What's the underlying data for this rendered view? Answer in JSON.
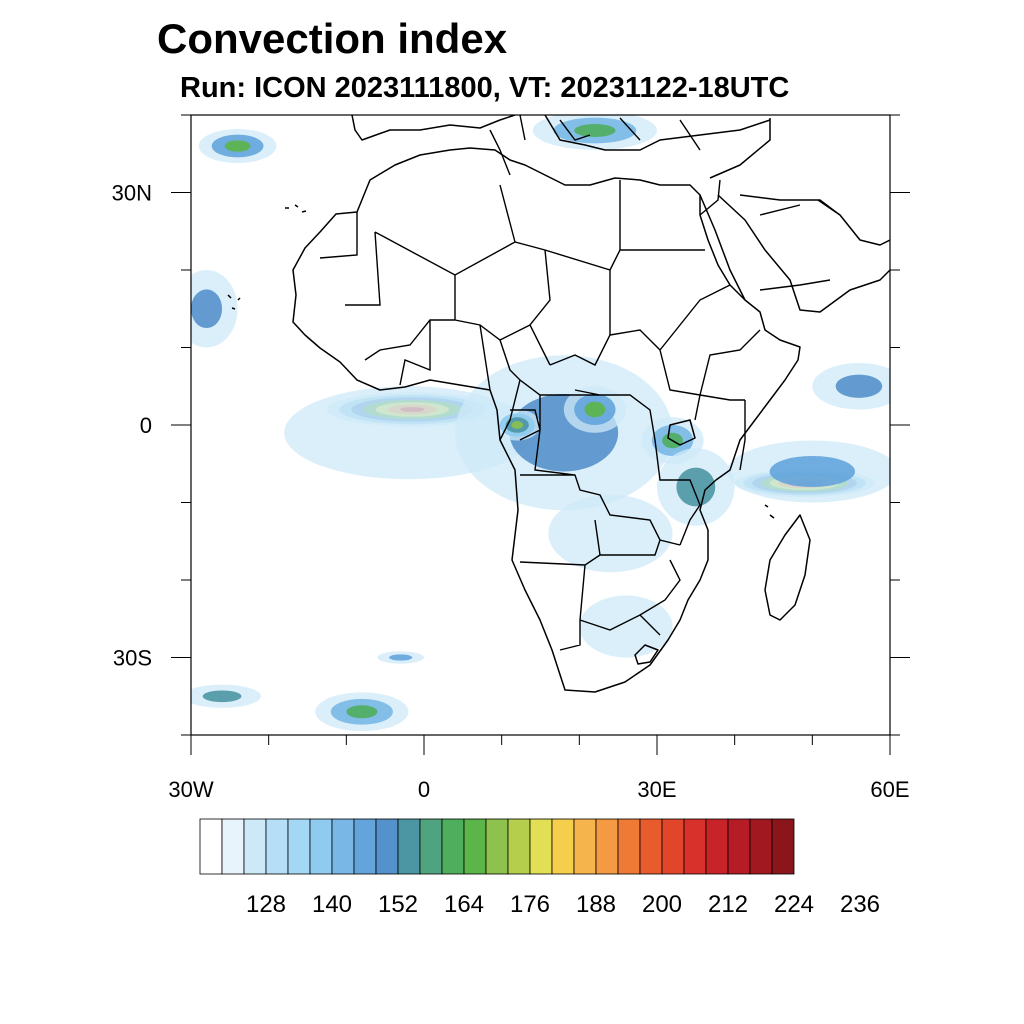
{
  "title": "Convection index",
  "subtitle": "Run: ICON 2023111800,  VT: 20231122-18UTC",
  "map": {
    "extent": {
      "lon_min": -30,
      "lon_max": 60,
      "lat_min": -40,
      "lat_max": 40
    },
    "x_ticks": [
      {
        "lon": -30,
        "label": "30W"
      },
      {
        "lon": 0,
        "label": "0"
      },
      {
        "lon": 30,
        "label": "30E"
      },
      {
        "lon": 60,
        "label": "60E"
      }
    ],
    "y_ticks": [
      {
        "lat": 30,
        "label": "30N"
      },
      {
        "lat": 0,
        "label": "0"
      },
      {
        "lat": -30,
        "label": "30S"
      }
    ],
    "minor_step_deg": 10,
    "convection_areas": [
      {
        "name": "gulf-of-guinea-band",
        "lon": -1.5,
        "lat": 2,
        "rlon": 11,
        "rlat": 2.2,
        "peak": 205
      },
      {
        "name": "gulf-of-guinea-halo",
        "lon": -2,
        "lat": -1,
        "rlon": 16,
        "rlat": 6,
        "peak": 140
      },
      {
        "name": "congo-basin",
        "lon": 18,
        "lat": -1,
        "rlon": 14,
        "rlat": 10,
        "peak": 150
      },
      {
        "name": "gabon-cluster",
        "lon": 12,
        "lat": 0,
        "rlon": 3,
        "rlat": 2,
        "peak": 168
      },
      {
        "name": "east-congo-cluster",
        "lon": 22,
        "lat": 2,
        "rlon": 4,
        "rlat": 3,
        "peak": 165
      },
      {
        "name": "lake-victoria",
        "lon": 32,
        "lat": -2,
        "rlon": 4,
        "rlat": 3,
        "peak": 160
      },
      {
        "name": "tanzania",
        "lon": 35,
        "lat": -8,
        "rlon": 5,
        "rlat": 5,
        "peak": 152
      },
      {
        "name": "indian-ocean-band",
        "lon": 49,
        "lat": -7.5,
        "rlon": 9,
        "rlat": 1.8,
        "peak": 218
      },
      {
        "name": "indian-ocean-halo",
        "lon": 50,
        "lat": -6,
        "rlon": 11,
        "rlat": 4,
        "peak": 145
      },
      {
        "name": "arabian-sea",
        "lon": 56,
        "lat": 5,
        "rlon": 6,
        "rlat": 3,
        "peak": 150
      },
      {
        "name": "angola-zambia",
        "lon": 24,
        "lat": -14,
        "rlon": 8,
        "rlat": 5,
        "peak": 135
      },
      {
        "name": "south-africa",
        "lon": 26,
        "lat": -26,
        "rlon": 6,
        "rlat": 4,
        "peak": 132
      },
      {
        "name": "mediterranean",
        "lon": 22,
        "lat": 38,
        "rlon": 8,
        "rlat": 2.5,
        "peak": 160
      },
      {
        "name": "atlantic-northwest",
        "lon": -24,
        "lat": 36,
        "rlon": 5,
        "rlat": 2.2,
        "peak": 165
      },
      {
        "name": "atlantic-west",
        "lon": -28,
        "lat": 15,
        "rlon": 4,
        "rlat": 5,
        "peak": 150
      },
      {
        "name": "atlantic-southwest",
        "lon": -26,
        "lat": -35,
        "rlon": 5,
        "rlat": 1.5,
        "peak": 152
      },
      {
        "name": "atlantic-south",
        "lon": -8,
        "lat": -37,
        "rlon": 6,
        "rlat": 2.5,
        "peak": 160
      },
      {
        "name": "atlantic-south-small",
        "lon": -3,
        "lat": -30,
        "rlon": 3,
        "rlat": 0.8,
        "peak": 145
      }
    ]
  },
  "colorbar": {
    "colors": [
      "#ffffff",
      "#e8f4fc",
      "#cde9f8",
      "#b6def6",
      "#a3d7f4",
      "#8ecbee",
      "#79b8e6",
      "#63a4db",
      "#5591cb",
      "#4c96a4",
      "#4fa37e",
      "#4fad5e",
      "#5bb548",
      "#8cc24d",
      "#b5cf4d",
      "#e1e054",
      "#f5ce4c",
      "#f6b44c",
      "#f49a42",
      "#ef7a35",
      "#e85b2c",
      "#e2462a",
      "#d8302b",
      "#c82329",
      "#b51c25",
      "#a21820",
      "#8a151b"
    ],
    "labels": [
      {
        "after_box": 2,
        "text": "128"
      },
      {
        "after_box": 5,
        "text": "140"
      },
      {
        "after_box": 8,
        "text": "152"
      },
      {
        "after_box": 11,
        "text": "164"
      },
      {
        "after_box": 14,
        "text": "176"
      },
      {
        "after_box": 17,
        "text": "188"
      },
      {
        "after_box": 20,
        "text": "200"
      },
      {
        "after_box": 23,
        "text": "212"
      },
      {
        "after_box": 26,
        "text": "224"
      },
      {
        "after_box": 29,
        "text": "236"
      }
    ]
  }
}
